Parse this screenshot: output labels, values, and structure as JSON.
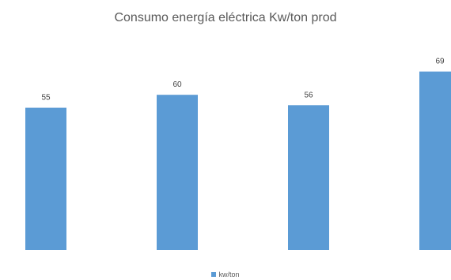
{
  "chart_data": {
    "type": "bar",
    "title": "Consumo energía eléctrica Kw/ton prod",
    "categories": [
      "",
      "",
      "",
      ""
    ],
    "series": [
      {
        "name": "kw/ton",
        "values": [
          55,
          60,
          56,
          69
        ],
        "labels": [
          "55",
          "60",
          "56",
          "69"
        ]
      }
    ],
    "ylim": [
      0,
      70
    ],
    "grid": false,
    "legend_position": "bottom",
    "bar_color": "#5b9bd5"
  }
}
